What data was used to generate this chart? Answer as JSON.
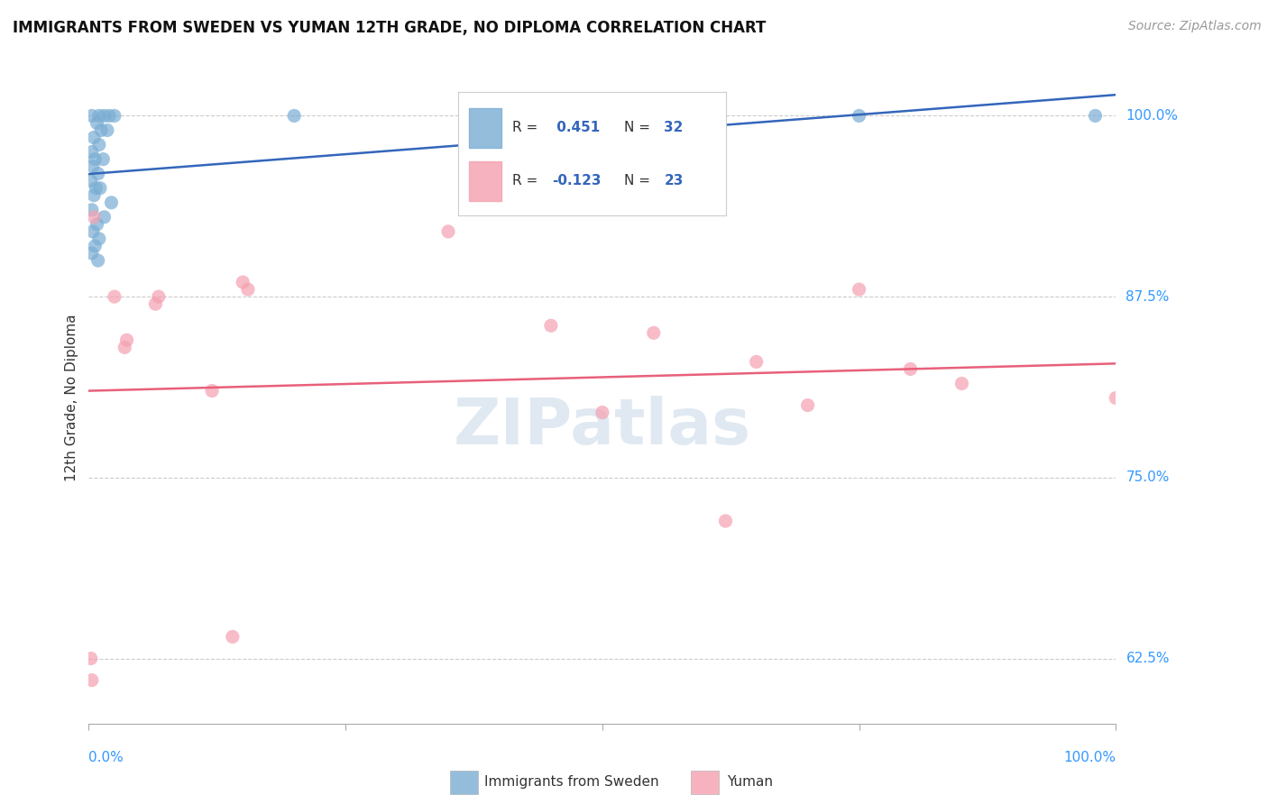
{
  "title": "IMMIGRANTS FROM SWEDEN VS YUMAN 12TH GRADE, NO DIPLOMA CORRELATION CHART",
  "source": "Source: ZipAtlas.com",
  "ylabel_label": "12th Grade, No Diploma",
  "xmin": 0.0,
  "xmax": 100.0,
  "ymin": 58.0,
  "ymax": 103.0,
  "yticks": [
    62.5,
    75.0,
    87.5,
    100.0
  ],
  "ytick_labels": [
    "62.5%",
    "75.0%",
    "87.5%",
    "100.0%"
  ],
  "xticks": [
    0.0,
    25.0,
    50.0,
    75.0,
    100.0
  ],
  "legend_r_blue": "0.451",
  "legend_n_blue": "32",
  "legend_r_pink": "-0.123",
  "legend_n_pink": "23",
  "blue_color": "#7AADD4",
  "pink_color": "#F4A0B0",
  "blue_line_color": "#3366BB",
  "pink_line_color": "#E8607A",
  "blue_scatter": [
    [
      0.3,
      100.0
    ],
    [
      1.0,
      100.0
    ],
    [
      1.5,
      100.0
    ],
    [
      2.0,
      100.0
    ],
    [
      2.5,
      100.0
    ],
    [
      0.8,
      99.5
    ],
    [
      1.2,
      99.0
    ],
    [
      1.8,
      99.0
    ],
    [
      0.5,
      98.5
    ],
    [
      1.0,
      98.0
    ],
    [
      0.3,
      97.5
    ],
    [
      0.6,
      97.0
    ],
    [
      1.4,
      97.0
    ],
    [
      0.4,
      96.5
    ],
    [
      0.9,
      96.0
    ],
    [
      0.2,
      95.5
    ],
    [
      0.7,
      95.0
    ],
    [
      1.1,
      95.0
    ],
    [
      0.5,
      94.5
    ],
    [
      2.2,
      94.0
    ],
    [
      0.3,
      93.5
    ],
    [
      1.5,
      93.0
    ],
    [
      0.8,
      92.5
    ],
    [
      0.4,
      92.0
    ],
    [
      1.0,
      91.5
    ],
    [
      0.6,
      91.0
    ],
    [
      0.3,
      90.5
    ],
    [
      0.9,
      90.0
    ],
    [
      20.0,
      100.0
    ],
    [
      50.0,
      100.0
    ],
    [
      75.0,
      100.0
    ],
    [
      98.0,
      100.0
    ]
  ],
  "pink_scatter": [
    [
      0.3,
      61.0
    ],
    [
      2.5,
      87.5
    ],
    [
      3.5,
      84.0
    ],
    [
      3.7,
      84.5
    ],
    [
      6.5,
      87.0
    ],
    [
      6.8,
      87.5
    ],
    [
      12.0,
      81.0
    ],
    [
      15.0,
      88.5
    ],
    [
      15.5,
      88.0
    ],
    [
      45.0,
      85.5
    ],
    [
      50.0,
      79.5
    ],
    [
      55.0,
      85.0
    ],
    [
      65.0,
      83.0
    ],
    [
      70.0,
      80.0
    ],
    [
      75.0,
      88.0
    ],
    [
      80.0,
      82.5
    ],
    [
      85.0,
      81.5
    ],
    [
      0.2,
      62.5
    ],
    [
      14.0,
      64.0
    ],
    [
      0.5,
      93.0
    ],
    [
      35.0,
      92.0
    ],
    [
      62.0,
      72.0
    ],
    [
      100.0,
      80.5
    ]
  ],
  "label_color_blue": "#3366BB",
  "label_color_pink": "#3366BB",
  "axis_label_color": "#3399FF",
  "text_color": "#333333",
  "source_color": "#999999",
  "grid_color": "#CCCCCC",
  "watermark_text": "ZIPatlas",
  "watermark_color": "#C8D8E8"
}
